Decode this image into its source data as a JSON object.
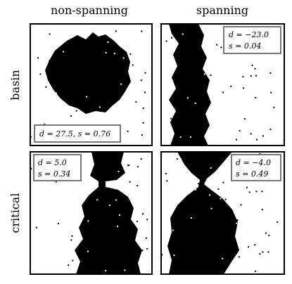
{
  "columns": [
    "non-spanning",
    "spanning"
  ],
  "rows": [
    "basin",
    "critical"
  ],
  "panels": [
    {
      "annotation": [
        "d = 27.5, s = 0.76"
      ]
    },
    {
      "annotation": [
        "d = −23.0",
        "s = 0.04"
      ]
    },
    {
      "annotation": [
        "d = 5.0",
        "s = 0.34"
      ]
    },
    {
      "annotation": [
        "d = −4.0",
        "s = 0.49"
      ]
    }
  ]
}
